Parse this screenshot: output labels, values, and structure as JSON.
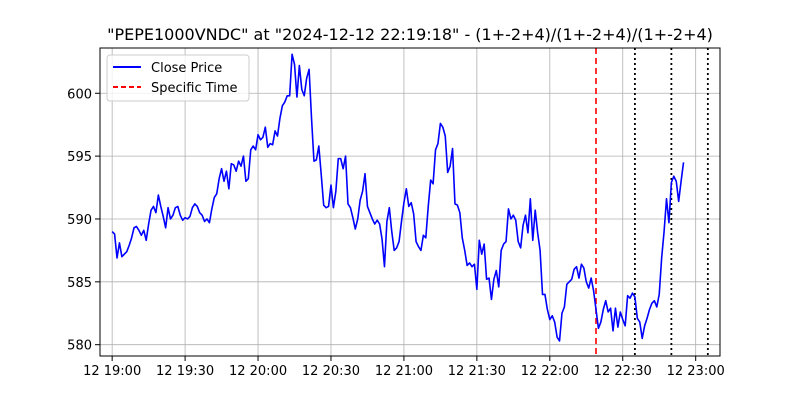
{
  "chart_data": {
    "type": "line",
    "title": "\"PEPE1000VNDC\" at \"2024-12-12 22:19:18\" - (1+-2+4)/(1+-2+4)/(1+-2+4)",
    "xlabel": "",
    "ylabel": "",
    "x_ticks": [
      {
        "t": "19:00",
        "label": "12 19:00"
      },
      {
        "t": "19:30",
        "label": "12 19:30"
      },
      {
        "t": "20:00",
        "label": "12 20:00"
      },
      {
        "t": "20:30",
        "label": "12 20:30"
      },
      {
        "t": "21:00",
        "label": "12 21:00"
      },
      {
        "t": "21:30",
        "label": "12 21:30"
      },
      {
        "t": "22:00",
        "label": "12 22:00"
      },
      {
        "t": "22:30",
        "label": "12 22:30"
      },
      {
        "t": "23:00",
        "label": "12 23:00"
      }
    ],
    "y_ticks": [
      580,
      585,
      590,
      595,
      600
    ],
    "xlim": [
      "18:55",
      "23:10"
    ],
    "ylim": [
      579.1,
      603.6
    ],
    "grid": true,
    "legend": {
      "placement": "top-left",
      "entries": [
        {
          "label": "Close Price",
          "color": "#0000ff",
          "style": "solid"
        },
        {
          "label": "Specific Time",
          "color": "#ff0000",
          "style": "dashed"
        }
      ]
    },
    "series": [
      {
        "name": "Close Price",
        "color": "#0000ff",
        "points": [
          [
            "19:00",
            589.0
          ],
          [
            "19:01",
            588.8
          ],
          [
            "19:02",
            586.9
          ],
          [
            "19:03",
            588.1
          ],
          [
            "19:04",
            587.0
          ],
          [
            "19:05",
            587.2
          ],
          [
            "19:06",
            587.4
          ],
          [
            "19:07",
            587.9
          ],
          [
            "19:08",
            588.5
          ],
          [
            "19:09",
            589.3
          ],
          [
            "19:10",
            589.4
          ],
          [
            "19:11",
            589.1
          ],
          [
            "19:12",
            588.7
          ],
          [
            "19:13",
            589.1
          ],
          [
            "19:14",
            588.3
          ],
          [
            "19:15",
            589.6
          ],
          [
            "19:16",
            590.7
          ],
          [
            "19:17",
            591.0
          ],
          [
            "19:18",
            590.5
          ],
          [
            "19:19",
            591.9
          ],
          [
            "19:20",
            591.0
          ],
          [
            "19:21",
            590.2
          ],
          [
            "19:22",
            589.3
          ],
          [
            "19:23",
            590.9
          ],
          [
            "19:24",
            590.0
          ],
          [
            "19:25",
            590.3
          ],
          [
            "19:26",
            590.9
          ],
          [
            "19:27",
            591.0
          ],
          [
            "19:28",
            590.3
          ],
          [
            "19:29",
            589.9
          ],
          [
            "19:30",
            590.1
          ],
          [
            "19:31",
            590.0
          ],
          [
            "19:32",
            590.2
          ],
          [
            "19:33",
            590.9
          ],
          [
            "19:34",
            591.2
          ],
          [
            "19:35",
            591.0
          ],
          [
            "19:36",
            590.5
          ],
          [
            "19:37",
            590.3
          ],
          [
            "19:38",
            589.8
          ],
          [
            "19:39",
            590.0
          ],
          [
            "19:40",
            589.7
          ],
          [
            "19:41",
            590.8
          ],
          [
            "19:42",
            591.7
          ],
          [
            "19:43",
            592.0
          ],
          [
            "19:44",
            593.2
          ],
          [
            "19:45",
            594.0
          ],
          [
            "19:46",
            593.0
          ],
          [
            "19:47",
            593.8
          ],
          [
            "19:48",
            592.4
          ],
          [
            "19:49",
            594.4
          ],
          [
            "19:50",
            594.3
          ],
          [
            "19:51",
            593.8
          ],
          [
            "19:52",
            594.6
          ],
          [
            "19:53",
            594.2
          ],
          [
            "19:54",
            595.0
          ],
          [
            "19:55",
            593.0
          ],
          [
            "19:56",
            593.2
          ],
          [
            "19:57",
            595.5
          ],
          [
            "19:58",
            595.8
          ],
          [
            "19:59",
            595.5
          ],
          [
            "20:00",
            596.7
          ],
          [
            "20:01",
            596.3
          ],
          [
            "20:02",
            596.5
          ],
          [
            "20:03",
            597.3
          ],
          [
            "20:04",
            595.7
          ],
          [
            "20:05",
            596.0
          ],
          [
            "20:06",
            595.9
          ],
          [
            "20:07",
            597.0
          ],
          [
            "20:08",
            596.6
          ],
          [
            "20:09",
            598.0
          ],
          [
            "20:10",
            599.0
          ],
          [
            "20:11",
            599.3
          ],
          [
            "20:12",
            599.8
          ],
          [
            "20:13",
            599.8
          ],
          [
            "20:14",
            603.1
          ],
          [
            "20:15",
            602.3
          ],
          [
            "20:16",
            599.7
          ],
          [
            "20:17",
            602.2
          ],
          [
            "20:18",
            600.3
          ],
          [
            "20:19",
            599.8
          ],
          [
            "20:20",
            601.2
          ],
          [
            "20:21",
            601.9
          ],
          [
            "20:22",
            598.0
          ],
          [
            "20:23",
            594.6
          ],
          [
            "20:24",
            594.7
          ],
          [
            "20:25",
            595.8
          ],
          [
            "20:26",
            593.5
          ],
          [
            "20:27",
            591.1
          ],
          [
            "20:28",
            590.9
          ],
          [
            "20:29",
            591.0
          ],
          [
            "20:30",
            592.7
          ],
          [
            "20:31",
            590.9
          ],
          [
            "20:32",
            592.2
          ],
          [
            "20:33",
            594.8
          ],
          [
            "20:34",
            594.8
          ],
          [
            "20:35",
            594.0
          ],
          [
            "20:36",
            595.0
          ],
          [
            "20:37",
            591.2
          ],
          [
            "20:38",
            590.9
          ],
          [
            "20:39",
            590.1
          ],
          [
            "20:40",
            589.2
          ],
          [
            "20:41",
            590.0
          ],
          [
            "20:42",
            591.5
          ],
          [
            "20:43",
            592.2
          ],
          [
            "20:44",
            593.6
          ],
          [
            "20:45",
            591.0
          ],
          [
            "20:46",
            590.5
          ],
          [
            "20:47",
            590.0
          ],
          [
            "20:48",
            589.6
          ],
          [
            "20:49",
            589.9
          ],
          [
            "20:50",
            589.6
          ],
          [
            "20:51",
            588.4
          ],
          [
            "20:52",
            586.2
          ],
          [
            "20:53",
            589.8
          ],
          [
            "20:54",
            590.9
          ],
          [
            "20:55",
            589.0
          ],
          [
            "20:56",
            587.5
          ],
          [
            "20:57",
            587.7
          ],
          [
            "20:58",
            588.2
          ],
          [
            "20:59",
            589.8
          ],
          [
            "21:00",
            591.3
          ],
          [
            "21:01",
            592.4
          ],
          [
            "21:02",
            591.0
          ],
          [
            "21:03",
            591.3
          ],
          [
            "21:04",
            590.4
          ],
          [
            "21:05",
            588.2
          ],
          [
            "21:06",
            587.8
          ],
          [
            "21:07",
            587.5
          ],
          [
            "21:08",
            588.7
          ],
          [
            "21:09",
            588.5
          ],
          [
            "21:10",
            591.0
          ],
          [
            "21:11",
            593.1
          ],
          [
            "21:12",
            592.8
          ],
          [
            "21:13",
            595.5
          ],
          [
            "21:14",
            596.0
          ],
          [
            "21:15",
            597.6
          ],
          [
            "21:16",
            597.3
          ],
          [
            "21:17",
            596.6
          ],
          [
            "21:18",
            593.7
          ],
          [
            "21:19",
            594.2
          ],
          [
            "21:20",
            595.6
          ],
          [
            "21:21",
            591.2
          ],
          [
            "21:22",
            591.1
          ],
          [
            "21:23",
            590.5
          ],
          [
            "21:24",
            588.5
          ],
          [
            "21:25",
            587.5
          ],
          [
            "21:26",
            586.3
          ],
          [
            "21:27",
            586.5
          ],
          [
            "21:28",
            586.2
          ],
          [
            "21:29",
            586.4
          ],
          [
            "21:30",
            584.4
          ],
          [
            "21:31",
            588.3
          ],
          [
            "21:32",
            587.2
          ],
          [
            "21:33",
            588.0
          ],
          [
            "21:34",
            585.2
          ],
          [
            "21:35",
            585.3
          ],
          [
            "21:36",
            583.6
          ],
          [
            "21:37",
            585.2
          ],
          [
            "21:38",
            585.9
          ],
          [
            "21:39",
            584.6
          ],
          [
            "21:40",
            587.5
          ],
          [
            "21:41",
            588.0
          ],
          [
            "21:42",
            588.2
          ],
          [
            "21:43",
            590.8
          ],
          [
            "21:44",
            590.0
          ],
          [
            "21:45",
            590.3
          ],
          [
            "21:46",
            589.9
          ],
          [
            "21:47",
            588.2
          ],
          [
            "21:48",
            587.7
          ],
          [
            "21:49",
            589.5
          ],
          [
            "21:50",
            590.3
          ],
          [
            "21:51",
            588.9
          ],
          [
            "21:52",
            591.6
          ],
          [
            "21:53",
            588.3
          ],
          [
            "21:54",
            590.7
          ],
          [
            "21:55",
            588.9
          ],
          [
            "21:56",
            587.5
          ],
          [
            "21:57",
            584.0
          ],
          [
            "21:58",
            584.0
          ],
          [
            "21:59",
            582.8
          ],
          [
            "22:00",
            582.0
          ],
          [
            "22:01",
            582.3
          ],
          [
            "22:02",
            581.8
          ],
          [
            "22:03",
            580.6
          ],
          [
            "22:04",
            580.3
          ],
          [
            "22:05",
            582.5
          ],
          [
            "22:06",
            583.0
          ],
          [
            "22:07",
            584.8
          ],
          [
            "22:08",
            585.0
          ],
          [
            "22:09",
            585.2
          ],
          [
            "22:10",
            586.0
          ],
          [
            "22:11",
            586.2
          ],
          [
            "22:12",
            585.3
          ],
          [
            "22:13",
            586.4
          ],
          [
            "22:14",
            586.1
          ],
          [
            "22:15",
            585.0
          ],
          [
            "22:16",
            584.5
          ],
          [
            "22:17",
            585.3
          ],
          [
            "22:18",
            584.3
          ],
          [
            "22:19",
            582.8
          ],
          [
            "22:20",
            581.3
          ],
          [
            "22:21",
            581.8
          ],
          [
            "22:22",
            582.8
          ],
          [
            "22:23",
            583.5
          ],
          [
            "22:24",
            582.6
          ],
          [
            "22:25",
            582.9
          ],
          [
            "22:26",
            581.1
          ],
          [
            "22:27",
            582.9
          ],
          [
            "22:28",
            581.4
          ],
          [
            "22:29",
            582.6
          ],
          [
            "22:30",
            582.0
          ],
          [
            "22:31",
            581.5
          ],
          [
            "22:32",
            583.9
          ],
          [
            "22:33",
            583.7
          ],
          [
            "22:34",
            584.1
          ],
          [
            "22:35",
            583.8
          ],
          [
            "22:36",
            582.1
          ],
          [
            "22:37",
            581.8
          ],
          [
            "22:38",
            580.5
          ],
          [
            "22:39",
            581.5
          ],
          [
            "22:40",
            582.1
          ],
          [
            "22:41",
            582.8
          ],
          [
            "22:42",
            583.3
          ],
          [
            "22:43",
            583.5
          ],
          [
            "22:44",
            583.0
          ],
          [
            "22:45",
            584.0
          ],
          [
            "22:46",
            586.9
          ],
          [
            "22:47",
            589.0
          ],
          [
            "22:48",
            591.6
          ],
          [
            "22:49",
            589.7
          ],
          [
            "22:50",
            592.9
          ],
          [
            "22:51",
            593.4
          ],
          [
            "22:52",
            593.0
          ],
          [
            "22:53",
            591.4
          ],
          [
            "22:54",
            593.0
          ],
          [
            "22:55",
            594.5
          ]
        ]
      }
    ],
    "specific_time": {
      "label": "Specific Time",
      "t": "22:19",
      "color": "#ff0000"
    },
    "dotted_markers": [
      "22:35",
      "22:50",
      "23:05"
    ]
  }
}
